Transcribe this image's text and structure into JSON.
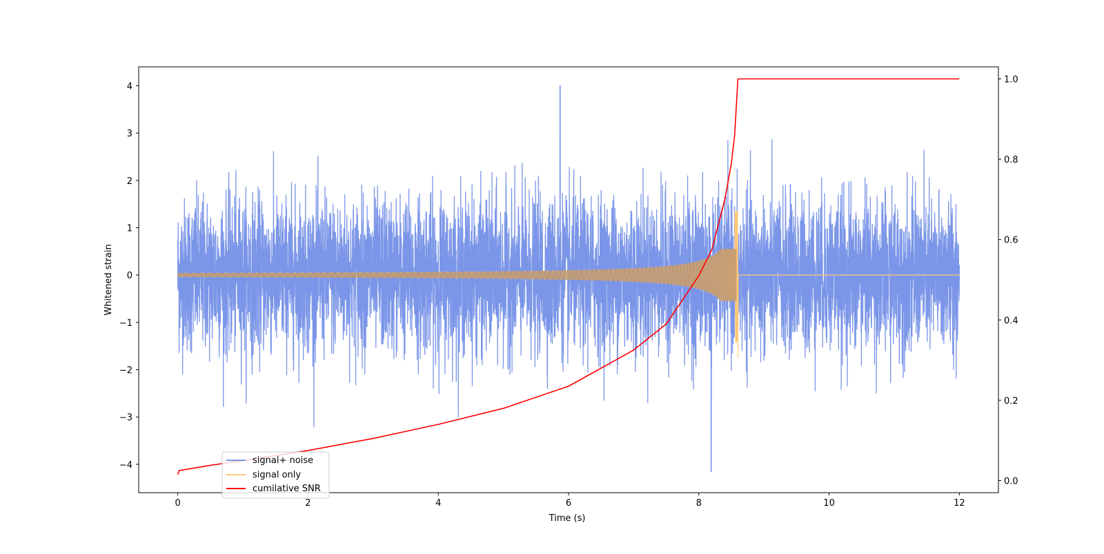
{
  "chart_data": {
    "type": "line",
    "title": "",
    "xlabel": "Time (s)",
    "ylabel_left": "Whitened strain",
    "ylabel_right": "",
    "xlim": [
      -0.6,
      12.6
    ],
    "ylim_left": [
      -4.6,
      4.4
    ],
    "ylim_right": [
      -0.03,
      1.03
    ],
    "x_ticks": [
      0,
      2,
      4,
      6,
      8,
      10,
      12
    ],
    "x_tick_labels": [
      "0",
      "2",
      "4",
      "6",
      "8",
      "10",
      "12"
    ],
    "y_left_ticks": [
      4,
      3,
      2,
      1,
      0,
      -1,
      -2,
      -3,
      -4
    ],
    "y_left_tick_labels": [
      "4",
      "3",
      "2",
      "1",
      "0",
      "−1",
      "−2",
      "−3",
      "−4"
    ],
    "y_right_ticks": [
      1.0,
      0.8,
      0.6,
      0.4,
      0.2,
      0.0
    ],
    "y_right_tick_labels": [
      "1.0",
      "0.8",
      "0.6",
      "0.4",
      "0.2",
      "0.0"
    ],
    "grid": false,
    "legend_position": "lower-left",
    "series": [
      {
        "name": "signal+ noise",
        "color": "#7b96e8",
        "axis": "left",
        "description_values": {
          "t_start": 0,
          "t_end": 12,
          "typical_min": -2.0,
          "typical_max": 2.1,
          "extreme_max": 4.0,
          "extreme_max_at": 5.87,
          "extreme_min": -4.15,
          "extreme_min_at": 8.19
        }
      },
      {
        "name": "signal only",
        "color": "#ffc97a",
        "axis": "left",
        "chirp": {
          "t_start": 0,
          "t_merger": 8.6,
          "t_end": 12,
          "amplitude_at_start": 0.04,
          "peak_max": 1.35,
          "peak_min": -1.75
        }
      },
      {
        "name": "cumilative SNR",
        "color": "#ff0000",
        "axis": "right",
        "points": [
          [
            0.0,
            0.015
          ],
          [
            0.02,
            0.025
          ],
          [
            0.5,
            0.038
          ],
          [
            1.0,
            0.05
          ],
          [
            2.0,
            0.075
          ],
          [
            3.0,
            0.105
          ],
          [
            4.0,
            0.14
          ],
          [
            5.0,
            0.18
          ],
          [
            6.0,
            0.235
          ],
          [
            7.0,
            0.325
          ],
          [
            7.5,
            0.39
          ],
          [
            8.0,
            0.51
          ],
          [
            8.2,
            0.575
          ],
          [
            8.4,
            0.7
          ],
          [
            8.5,
            0.79
          ],
          [
            8.55,
            0.86
          ],
          [
            8.6,
            1.0
          ],
          [
            12.0,
            1.0
          ]
        ]
      }
    ]
  }
}
